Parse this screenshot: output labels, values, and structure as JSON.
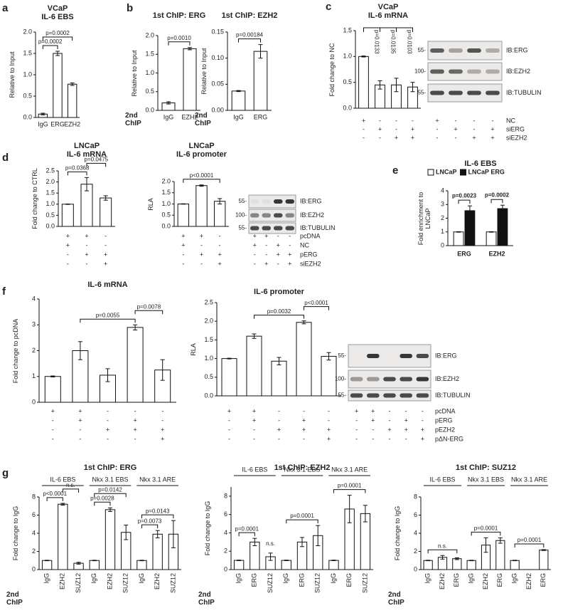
{
  "chart_data": [
    {
      "type": "bar",
      "panel": "a",
      "title": "VCaP",
      "subtitle": "IL-6 EBS",
      "ylabel": "Relative to Input",
      "categories": [
        "IgG",
        "ERG",
        "EZH2"
      ],
      "values": [
        0.08,
        1.5,
        0.78
      ],
      "errors": [
        0.02,
        0.05,
        0.03
      ],
      "ylim": [
        0,
        2
      ],
      "yticks": [
        {
          "value": 0,
          "label": "0.0"
        },
        0.5,
        {
          "value": 1,
          "label": "1.0"
        },
        1.5,
        {
          "value": 2,
          "label": "2.0"
        }
      ],
      "brackets": [
        {
          "from": 0,
          "to": 1,
          "label": "p=0.0002"
        },
        {
          "from": 0,
          "to": 2,
          "label": "p=0.0002"
        }
      ]
    },
    {
      "type": "bar",
      "panel": "b",
      "title": "1st ChIP: ERG",
      "ylabel": "Relative to Input",
      "xlabel": "2nd ChIP",
      "categories": [
        "IgG",
        "EZH2"
      ],
      "values": [
        0.2,
        1.65
      ],
      "errors": [
        0.03,
        0.03
      ],
      "ylim": [
        0,
        2
      ],
      "yticks": [
        {
          "value": 0,
          "label": "0.0"
        },
        0.5,
        {
          "value": 1,
          "label": "1.0"
        },
        1.5,
        {
          "value": 2,
          "label": "2.0"
        }
      ],
      "brackets": [
        {
          "from": 0,
          "to": 1,
          "label": "p=0.0010"
        }
      ]
    },
    {
      "type": "bar",
      "title": "1st ChIP: EZH2",
      "ylabel": "Relative to Input",
      "xlabel": "2nd ChIP",
      "categories": [
        "IgG",
        "ERG"
      ],
      "values": [
        0.037,
        0.113
      ],
      "errors": [
        0.001,
        0.013
      ],
      "ylim": [
        0,
        0.15
      ],
      "yticks": [
        {
          "value": 0,
          "label": "0.00"
        },
        0.05,
        {
          "value": 0.1,
          "label": "0.10"
        },
        0.15
      ],
      "brackets": [
        {
          "from": 0,
          "to": 1,
          "label": "p=0.00184"
        }
      ]
    },
    {
      "type": "bar",
      "panel": "c",
      "title": "VCaP",
      "subtitle": "IL-6 mRNA",
      "ylabel": "Fold change to NC",
      "categories": [
        null,
        null,
        null,
        null
      ],
      "values": [
        1.0,
        0.45,
        0.45,
        0.41
      ],
      "errors": [
        0.01,
        0.08,
        0.13,
        0.09
      ],
      "ylim": [
        0,
        1.5
      ],
      "yticks": [
        {
          "value": 0,
          "label": "0.0"
        },
        0.5,
        {
          "value": 1,
          "label": "1.0"
        },
        1.5
      ],
      "bracket_label_rotated": true,
      "brackets": [
        {
          "from": 0,
          "to": 1,
          "label": "p=0.0133"
        },
        {
          "from": 0,
          "to": 2,
          "label": "p=0.0135"
        },
        {
          "from": 0,
          "to": 3,
          "label": "p=0.0103"
        }
      ],
      "conditions": [
        [
          "+",
          "-",
          "-",
          "-"
        ],
        [
          "-",
          "+",
          "-",
          "+"
        ],
        [
          "-",
          "-",
          "+",
          "+"
        ]
      ]
    },
    {
      "type": "bar",
      "panel": "d",
      "title": "LNCaP",
      "subtitle": "IL-6 mRNA",
      "ylabel": "Fold change to CTRL",
      "categories": [
        null,
        null,
        null
      ],
      "values": [
        1.0,
        1.9,
        1.28
      ],
      "errors": [
        0.01,
        0.3,
        0.1
      ],
      "ylim": [
        0,
        2.5
      ],
      "yticks": [
        {
          "value": 0,
          "label": "0.0"
        },
        0.5,
        {
          "value": 1,
          "label": "1.0"
        },
        1.5,
        {
          "value": 2,
          "label": "2.0"
        },
        2.5
      ],
      "brackets": [
        {
          "from": 0,
          "to": 1,
          "label": "p=0.0368"
        },
        {
          "from": 1,
          "to": 2,
          "label": "p=0.0475"
        }
      ],
      "conditions": [
        [
          "+",
          "+",
          "-"
        ],
        [
          "+",
          "-",
          "-"
        ],
        [
          "-",
          "+",
          "+"
        ],
        [
          "-",
          "-",
          "+"
        ]
      ]
    },
    {
      "type": "bar",
      "title": "LNCaP",
      "subtitle": "IL-6 promoter",
      "ylabel": "RLA",
      "categories": [
        null,
        null,
        null
      ],
      "values": [
        1.0,
        1.82,
        1.12
      ],
      "errors": [
        0.01,
        0.03,
        0.12
      ],
      "ylim": [
        0,
        2
      ],
      "yticks": [
        {
          "value": 0,
          "label": "0.0"
        },
        0.5,
        {
          "value": 1,
          "label": "1.0"
        },
        1.5,
        {
          "value": 2,
          "label": "2.0"
        }
      ],
      "brackets": [
        {
          "from": 0,
          "to": 2,
          "label": "p<0.0001"
        }
      ],
      "conditions": [
        [
          "+",
          "+",
          "-"
        ],
        [
          "+",
          "-",
          "-"
        ],
        [
          "-",
          "+",
          "+"
        ],
        [
          "-",
          "-",
          "+"
        ]
      ]
    },
    {
      "type": "grouped_bar",
      "panel": "e",
      "title": "IL-6 EBS",
      "ylabel": "Fold enrichment to LNCaP",
      "categories": [
        "ERG",
        "EZH2"
      ],
      "series": [
        {
          "name": "LNCaP",
          "color": "#ffffff",
          "values": [
            1,
            1
          ],
          "errors": [
            0.02,
            0.02
          ]
        },
        {
          "name": "LNCaP ERG",
          "color": "#111111",
          "values": [
            2.55,
            2.7
          ],
          "errors": [
            0.35,
            0.25
          ]
        }
      ],
      "ylim": [
        0,
        4
      ],
      "yticks": [
        0,
        1,
        2,
        3,
        4
      ],
      "brackets": [
        {
          "group": 0,
          "from": 0,
          "to": 1,
          "label": "p=0.0023"
        },
        {
          "group": 1,
          "from": 0,
          "to": 1,
          "label": "p=0.0002"
        }
      ]
    },
    {
      "type": "bar",
      "panel": "f",
      "title": "IL-6 mRNA",
      "ylabel": "Fold change to pcDNA",
      "categories": [
        null,
        null,
        null,
        null,
        null
      ],
      "values": [
        1.0,
        2.0,
        1.05,
        2.9,
        1.25
      ],
      "errors": [
        0.02,
        0.35,
        0.25,
        0.1,
        0.4
      ],
      "ylim": [
        0,
        4
      ],
      "yticks": [
        0,
        1,
        2,
        3,
        4
      ],
      "brackets": [
        {
          "from": 1,
          "to": 3,
          "label": "p=0.0055"
        },
        {
          "from": 3,
          "to": 4,
          "label": "p=0.0078"
        }
      ],
      "conditions": [
        [
          "+",
          "+",
          "-",
          "-",
          "-"
        ],
        [
          "-",
          "+",
          "-",
          "+",
          "-"
        ],
        [
          "-",
          "-",
          "+",
          "+",
          "+"
        ],
        [
          "-",
          "-",
          "-",
          "-",
          "+"
        ]
      ]
    },
    {
      "type": "bar",
      "title": "IL-6 promoter",
      "ylabel": "RLA",
      "categories": [
        null,
        null,
        null,
        null,
        null
      ],
      "values": [
        1.0,
        1.6,
        0.93,
        1.97,
        1.06
      ],
      "errors": [
        0.01,
        0.06,
        0.1,
        0.04,
        0.1
      ],
      "ylim": [
        0,
        2.5
      ],
      "yticks": [
        {
          "value": 0,
          "label": "0.0"
        },
        0.5,
        {
          "value": 1,
          "label": "1.0"
        },
        1.5,
        {
          "value": 2,
          "label": "2.0"
        },
        2.5
      ],
      "brackets": [
        {
          "from": 1,
          "to": 3,
          "label": "p=0.0032"
        },
        {
          "from": 3,
          "to": 4,
          "label": "p<0.0001"
        }
      ],
      "conditions": [
        [
          "+",
          "+",
          "-",
          "-",
          "-"
        ],
        [
          "-",
          "+",
          "-",
          "+",
          "-"
        ],
        [
          "-",
          "-",
          "+",
          "+",
          "+"
        ],
        [
          "-",
          "-",
          "-",
          "-",
          "+"
        ]
      ]
    },
    {
      "type": "bar",
      "panel": "g",
      "title": "1st ChIP: ERG",
      "ylabel": "Fold change to IgG",
      "xlabel": "2nd ChIP",
      "rotate_x_labels": true,
      "groups": [
        "IL-6 EBS",
        "Nkx 3.1 EBS",
        "Nkx 3.1 ARE"
      ],
      "categories": [
        "IgG",
        "EZH2",
        "SUZ12",
        "IgG",
        "EZH2",
        "SUZ12",
        "IgG",
        "EZH2",
        "SUZ12"
      ],
      "values": [
        1.0,
        7.2,
        0.7,
        1.0,
        6.6,
        4.1,
        1.0,
        3.9,
        3.9
      ],
      "errors": [
        0.03,
        0.1,
        0.1,
        0.03,
        0.2,
        0.8,
        0.03,
        0.4,
        1.5
      ],
      "ylim": [
        0,
        8
      ],
      "yticks": [
        0,
        2,
        4,
        6,
        8
      ],
      "brackets": [
        {
          "from": 0,
          "to": 1,
          "label": "p<0.0001"
        },
        {
          "from": 1,
          "to": 2,
          "label": "n.s."
        },
        {
          "from": 3,
          "to": 4,
          "label": "p=0.0028"
        },
        {
          "from": 3,
          "to": 5,
          "label": "p=0.0142"
        },
        {
          "from": 6,
          "to": 7,
          "label": "p=0.0073"
        },
        {
          "from": 6,
          "to": 8,
          "label": "p=0.0143"
        }
      ]
    },
    {
      "type": "bar",
      "title": "1st ChIP: EZH2",
      "ylabel": "Fold change to IgG",
      "xlabel": "2nd ChIP",
      "rotate_x_labels": true,
      "groups": [
        "IL-6 EBS",
        "Nkx 3.1 EBS",
        "Nkx 3.1 ARE"
      ],
      "categories": [
        "IgG",
        "ERG",
        "SUZ12",
        "IgG",
        "ERG",
        "SUZ12",
        "IgG",
        "ERG",
        "SUZ12"
      ],
      "values": [
        1.0,
        3.0,
        1.4,
        1.0,
        3.0,
        3.7,
        1.0,
        6.6,
        6.1
      ],
      "errors": [
        0.03,
        0.4,
        0.4,
        0.03,
        0.5,
        1.1,
        0.03,
        1.5,
        0.9
      ],
      "ylim": [
        0,
        9
      ],
      "yticks": [
        0,
        2,
        4,
        6,
        8
      ],
      "brackets": [
        {
          "from": 0,
          "to": 1,
          "label": "p=0.0001"
        },
        {
          "from": 2,
          "to": 2,
          "label": "n.s."
        },
        {
          "from": 3,
          "to": 5,
          "label": "p=0.0001"
        },
        {
          "from": 6,
          "to": 8,
          "label": "p=0.0001"
        }
      ]
    },
    {
      "type": "bar",
      "title": "1st ChIP: SUZ12",
      "ylabel": "Fold change to IgG",
      "xlabel": "2nd ChIP",
      "rotate_x_labels": true,
      "groups": [
        "IL-6 EBS",
        "Nkx 3.1 EBS",
        "Nkx 3.1 ARE"
      ],
      "categories": [
        "IgG",
        "EZH2",
        "ERG",
        "IgG",
        "EZH2",
        "ERG",
        "IgG",
        "EZH2",
        "ERG"
      ],
      "values": [
        1.0,
        1.35,
        1.2,
        1.0,
        2.7,
        3.2,
        1.0,
        null,
        2.15
      ],
      "errors": [
        0.03,
        0.2,
        0.1,
        0.03,
        0.8,
        0.3,
        0.03,
        null,
        0.05
      ],
      "ylim": [
        0,
        8
      ],
      "yticks": [
        0,
        2,
        4,
        6,
        8
      ],
      "brackets": [
        {
          "from": 0,
          "to": 2,
          "label": "n.s."
        },
        {
          "from": 3,
          "to": 5,
          "label": "p=0.0001"
        },
        {
          "from": 6,
          "to": 8,
          "label": "p=0.0001"
        }
      ]
    }
  ],
  "blots": [
    {
      "bands": [
        "IB:ERG",
        "IB:EZH2",
        "IB:TUBULIN"
      ],
      "markers": [
        "55-",
        "100-",
        "55-"
      ],
      "rows": [
        {
          "label": "NC",
          "signs": [
            "+",
            "-",
            "-",
            "-"
          ]
        },
        {
          "label": "siERG",
          "signs": [
            "-",
            "+",
            "-",
            "+"
          ]
        },
        {
          "label": "siEZH2",
          "signs": [
            "-",
            "-",
            "+",
            "+"
          ]
        }
      ]
    },
    {
      "bands": [
        "IB:ERG",
        "IB:EZH2",
        "IB:TUBULIN"
      ],
      "markers": [
        "55-",
        "100-",
        "55-"
      ],
      "rows": [
        {
          "label": "pcDNA",
          "signs": [
            "+",
            "+",
            "-",
            "-"
          ]
        },
        {
          "label": "NC",
          "signs": [
            "+",
            "-",
            "+",
            "-"
          ]
        },
        {
          "label": "pERG",
          "signs": [
            "-",
            "-",
            "+",
            "+"
          ]
        },
        {
          "label": "siEZH2",
          "signs": [
            "-",
            "+",
            "-",
            "+"
          ]
        }
      ]
    },
    {
      "bands": [
        "IB:ERG",
        "IB:EZH2",
        "IB:TUBULIN"
      ],
      "markers": [
        "55-",
        "100-",
        "55-"
      ],
      "rows": [
        {
          "label": "pcDNA",
          "signs": [
            "+",
            "+",
            "-",
            "-",
            "-"
          ]
        },
        {
          "label": "pERG",
          "signs": [
            "-",
            "+",
            "-",
            "+",
            "-"
          ]
        },
        {
          "label": "pEZH2",
          "signs": [
            "-",
            "-",
            "+",
            "+",
            "+"
          ]
        },
        {
          "label": "pΔN-ERG",
          "signs": [
            "-",
            "-",
            "-",
            "-",
            "+"
          ]
        }
      ]
    }
  ]
}
